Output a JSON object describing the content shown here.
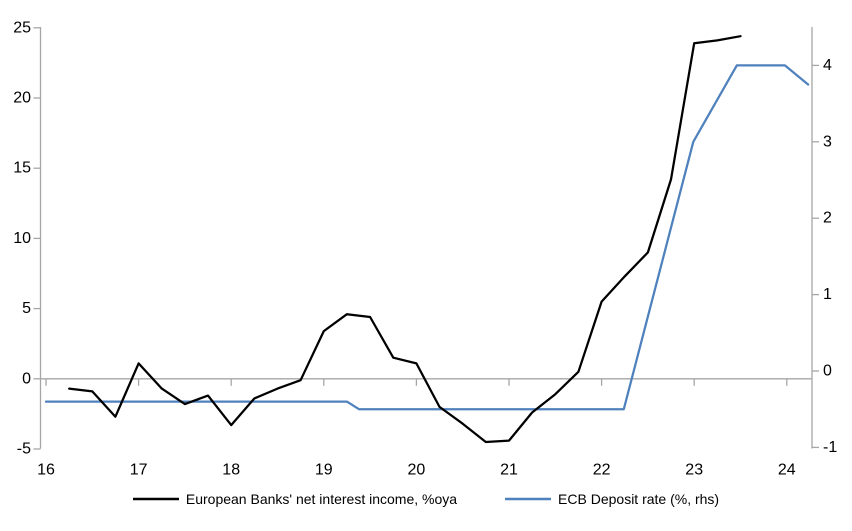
{
  "chart_data": {
    "type": "line",
    "title": "",
    "grid": "zero-line-only",
    "legend_position": "bottom-center",
    "left_axis": {
      "tick_labels": [
        "25",
        "20",
        "15",
        "10",
        "5",
        "0",
        "-5"
      ],
      "tick_values": [
        25,
        20,
        15,
        10,
        5,
        0,
        -5
      ],
      "range": [
        -5,
        25
      ]
    },
    "right_axis": {
      "tick_labels": [
        "4",
        "3",
        "2",
        "1",
        "0",
        "-1"
      ],
      "tick_values": [
        4,
        3,
        2,
        1,
        0,
        -1
      ],
      "range": [
        -1,
        4.5
      ]
    },
    "x_axis": {
      "tick_labels": [
        "16",
        "17",
        "18",
        "19",
        "20",
        "21",
        "22",
        "23",
        "24"
      ],
      "tick_values": [
        16,
        17,
        18,
        19,
        20,
        21,
        22,
        23,
        24
      ],
      "range": [
        16,
        24.6
      ]
    },
    "series": [
      {
        "name": "European Banks' net interest income, %oya",
        "axis": "left",
        "color": "#000000",
        "line_width": 2.25,
        "x": [
          16.25,
          16.5,
          16.75,
          17.0,
          17.25,
          17.5,
          17.75,
          18.0,
          18.25,
          18.5,
          18.75,
          19.0,
          19.25,
          19.5,
          19.75,
          20.0,
          20.25,
          20.5,
          20.75,
          21.0,
          21.25,
          21.5,
          21.75,
          22.0,
          22.25,
          22.5,
          22.75,
          23.0,
          23.25,
          23.5
        ],
        "values": [
          -0.7,
          -0.9,
          -2.7,
          1.1,
          -0.7,
          -1.8,
          -1.2,
          -3.3,
          -1.4,
          -0.7,
          -0.1,
          3.4,
          4.6,
          4.4,
          1.5,
          1.1,
          -2.0,
          -3.2,
          -4.5,
          -4.4,
          -2.4,
          -1.1,
          0.5,
          5.5,
          7.3,
          9.0,
          14.2,
          23.9,
          24.1,
          24.4
        ]
      },
      {
        "name": "ECB Deposit rate (%, rhs)",
        "axis": "right",
        "color": "#4f81bd",
        "line_width": 2.25,
        "x": [
          16.0,
          19.25,
          19.38,
          22.24,
          22.99,
          23.46,
          23.98,
          24.23
        ],
        "values": [
          -0.4,
          -0.4,
          -0.5,
          -0.5,
          3.0,
          4.0,
          4.0,
          3.75
        ]
      }
    ]
  },
  "legend": {
    "items": [
      {
        "label": "European Banks' net interest income, %oya",
        "color": "#000000"
      },
      {
        "label": "ECB Deposit rate (%, rhs)",
        "color": "#4f81bd"
      }
    ]
  },
  "style": {
    "axis_color": "#a6a6a6",
    "tick_label_color": "#000000",
    "background": "#ffffff"
  }
}
